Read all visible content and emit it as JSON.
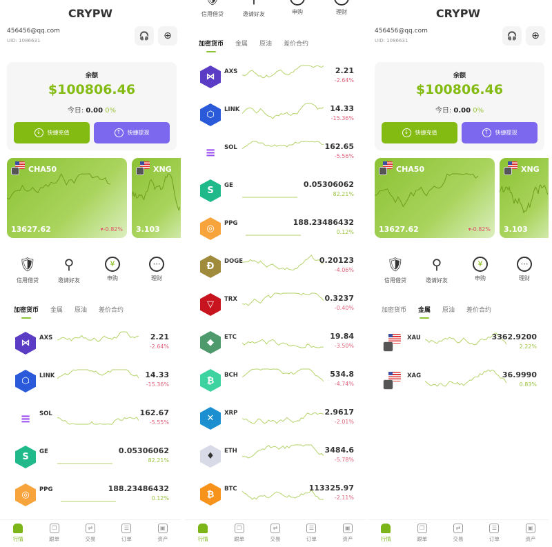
{
  "app_title": "CRYPW",
  "account": {
    "email": "456456@qq.com",
    "uid": "UID: 1086631",
    "buttons": [
      {
        "icon": "headset-icon"
      },
      {
        "icon": "globe-icon"
      }
    ]
  },
  "balance": {
    "label": "余额",
    "amount": "$100806.46",
    "today_label": "今日: ",
    "today_value": "0.00",
    "today_pct": "0%",
    "deposit_label": "快捷充值",
    "withdraw_label": "快捷提现"
  },
  "featured": [
    {
      "symbol": "CHA50",
      "price": "13627.62",
      "change": "▾-0.82%"
    },
    {
      "symbol": "XNG",
      "price": "3.103"
    }
  ],
  "shortcuts": [
    {
      "label": "信用借贷",
      "icon": "shield-dollar-icon"
    },
    {
      "label": "邀请好友",
      "icon": "add-user-icon"
    },
    {
      "label": "申购",
      "icon": "yen-icon"
    },
    {
      "label": "理财",
      "icon": "more-icon"
    }
  ],
  "tabs": [
    "加密货币",
    "金属",
    "原油",
    "差价合约"
  ],
  "nav": [
    {
      "label": "行情",
      "icon": "home-icon"
    },
    {
      "label": "跟单",
      "icon": "copy-icon"
    },
    {
      "label": "交易",
      "icon": "exchange-icon"
    },
    {
      "label": "订单",
      "icon": "orders-icon"
    },
    {
      "label": "资产",
      "icon": "wallet-icon"
    }
  ],
  "colors": {
    "accent": "#84bb12",
    "withdraw": "#7b68ee",
    "negative": "#e0607a",
    "positive": "#9cc440"
  },
  "screens": [
    {
      "active_tab": 0,
      "items": [
        {
          "symbol": "AXS",
          "price": "2.21",
          "change": "-2.64%",
          "color": "#5b3cc4",
          "glyph": "⋈"
        },
        {
          "symbol": "LINK",
          "price": "14.33",
          "change": "-15.36%",
          "color": "#2a5ada",
          "glyph": "⬡"
        },
        {
          "symbol": "SOL",
          "price": "162.67",
          "change": "-5.55%",
          "color": "#ffffff",
          "glyph": "≡"
        },
        {
          "symbol": "GE",
          "price": "0.05306062",
          "change": "82.21%",
          "color": "#1fb98a",
          "glyph": "S"
        },
        {
          "symbol": "PPG",
          "price": "188.23486432",
          "change": "0.12%",
          "color": "#f7a43c",
          "glyph": "◎"
        }
      ]
    },
    {
      "active_tab": 0,
      "items": [
        {
          "symbol": "AXS",
          "price": "2.21",
          "change": "-2.64%",
          "color": "#5b3cc4",
          "glyph": "⋈"
        },
        {
          "symbol": "LINK",
          "price": "14.33",
          "change": "-15.36%",
          "color": "#2a5ada",
          "glyph": "⬡"
        },
        {
          "symbol": "SOL",
          "price": "162.65",
          "change": "-5.56%",
          "color": "#ffffff",
          "glyph": "≡"
        },
        {
          "symbol": "GE",
          "price": "0.05306062",
          "change": "82.21%",
          "color": "#1fb98a",
          "glyph": "S"
        },
        {
          "symbol": "PPG",
          "price": "188.23486432",
          "change": "0.12%",
          "color": "#f7a43c",
          "glyph": "◎"
        },
        {
          "symbol": "DOGE",
          "price": "0.20123",
          "change": "-4.06%",
          "color": "#a08a3c",
          "glyph": "Ð"
        },
        {
          "symbol": "TRX",
          "price": "0.3237",
          "change": "-0.40%",
          "color": "#c8141e",
          "glyph": "▽"
        },
        {
          "symbol": "ETC",
          "price": "19.84",
          "change": "-3.50%",
          "color": "#4f9a6d",
          "glyph": "◆"
        },
        {
          "symbol": "BCH",
          "price": "534.8",
          "change": "-4.74%",
          "color": "#3cd3a0",
          "glyph": "₿"
        },
        {
          "symbol": "XRP",
          "price": "2.9617",
          "change": "-2.01%",
          "color": "#1b8fd0",
          "glyph": "✕"
        },
        {
          "symbol": "ETH",
          "price": "3484.6",
          "change": "-5.78%",
          "color": "#d8dae8",
          "glyph": "♦"
        },
        {
          "symbol": "BTC",
          "price": "113325.97",
          "change": "-2.11%",
          "color": "#f7931a",
          "glyph": "₿"
        }
      ]
    },
    {
      "active_tab": 1,
      "items": [
        {
          "symbol": "XAU",
          "price": "3362.9200",
          "change": "2.22%",
          "flag": true
        },
        {
          "symbol": "XAG",
          "price": "36.9990",
          "change": "0.83%",
          "flag": true
        }
      ]
    }
  ]
}
